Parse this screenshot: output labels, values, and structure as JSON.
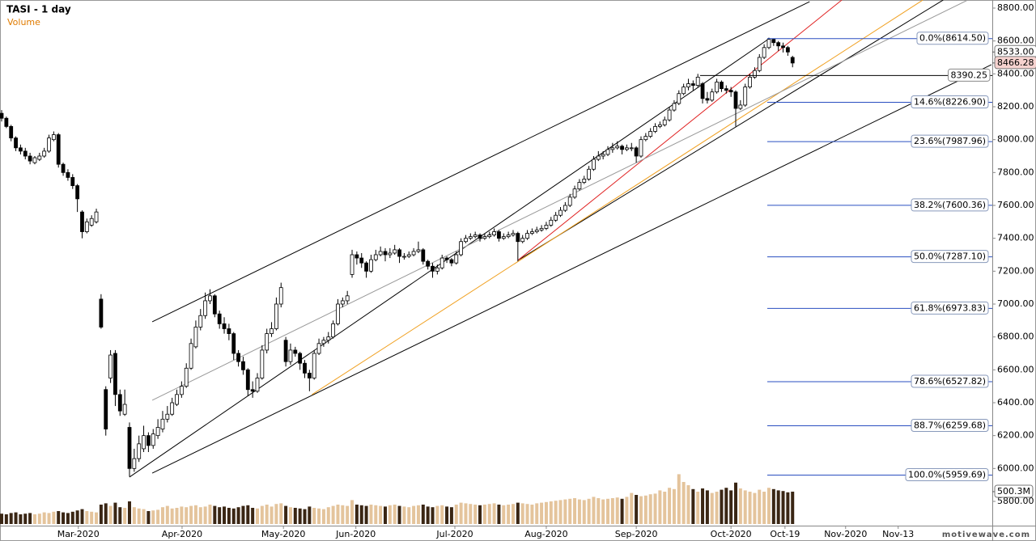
{
  "chart_data": {
    "type": "candlestick",
    "title": "TASI - 1 day",
    "volume_label": "Volume",
    "watermark": "motivewave.com",
    "up_color": "#ffffff",
    "down_color": "#000000",
    "volume_up_color": "#e4c49c",
    "volume_down_color": "#3a2614",
    "ylim": [
      5800,
      8800
    ],
    "yticks": [
      {
        "value": 5800,
        "label": "5800.00"
      },
      {
        "value": 6000,
        "label": "6000.00"
      },
      {
        "value": 6200,
        "label": "6200.00"
      },
      {
        "value": 6400,
        "label": "6400.00"
      },
      {
        "value": 6600,
        "label": "6600.00"
      },
      {
        "value": 6800,
        "label": "6800.00"
      },
      {
        "value": 7000,
        "label": "7000.00"
      },
      {
        "value": 7200,
        "label": "7200.00"
      },
      {
        "value": 7400,
        "label": "7400.00"
      },
      {
        "value": 7600,
        "label": "7600.00"
      },
      {
        "value": 7800,
        "label": "7800.00"
      },
      {
        "value": 8000,
        "label": "8000.00"
      },
      {
        "value": 8200,
        "label": "8200.00"
      },
      {
        "value": 8400,
        "label": "8400.00"
      },
      {
        "value": 8600,
        "label": "8600.00"
      },
      {
        "value": 8800,
        "label": "8800.00"
      }
    ],
    "xlim": [
      0,
      209
    ],
    "xticks": [
      {
        "value": 16.2,
        "label": "Mar-2020"
      },
      {
        "value": 38.1,
        "label": "Apr-2020"
      },
      {
        "value": 59.5,
        "label": "May-2020"
      },
      {
        "value": 74.8,
        "label": "Jun-2020"
      },
      {
        "value": 95.7,
        "label": "Jul-2020"
      },
      {
        "value": 115.0,
        "label": "Aug-2020"
      },
      {
        "value": 134.0,
        "label": "Sep-2020"
      },
      {
        "value": 154.0,
        "label": "Oct-2020"
      },
      {
        "value": 165.4,
        "label": "Oct-19"
      },
      {
        "value": 178.2,
        "label": "Nov-2020"
      },
      {
        "value": 189.3,
        "label": "Nov-13"
      }
    ],
    "vlim": [
      0,
      800
    ],
    "volume_tick": {
      "value": 500.3,
      "label": "500.3M"
    },
    "price_labels": [
      {
        "value": 8533.0,
        "label": "8533.00",
        "color": "#ffffff"
      },
      {
        "value": 8466.28,
        "label": "8466.28",
        "color": "#f6d2cf"
      }
    ],
    "horizontal_level": {
      "value": 8390.25,
      "label": "8390.25"
    },
    "fib_levels": [
      {
        "value": 8614.5,
        "label": "0.0%(8614.50)"
      },
      {
        "value": 8226.9,
        "label": "14.6%(8226.90)"
      },
      {
        "value": 7987.96,
        "label": "23.6%(7987.96)"
      },
      {
        "value": 7600.36,
        "label": "38.2%(7600.36)"
      },
      {
        "value": 7287.1,
        "label": "50.0%(7287.10)"
      },
      {
        "value": 6973.83,
        "label": "61.8%(6973.83)"
      },
      {
        "value": 6527.82,
        "label": "78.6%(6527.82)"
      },
      {
        "value": 6259.68,
        "label": "88.7%(6259.68)"
      },
      {
        "value": 5959.69,
        "label": "100.0%(5959.69)"
      }
    ],
    "fib_color": "#2a4fc0",
    "trendlines": [
      {
        "color": "#000000",
        "points": [
          [
            31.8,
            6892
          ],
          [
            170.6,
            8839
          ]
        ]
      },
      {
        "color": "#000000",
        "points": [
          [
            31.8,
            5972
          ],
          [
            209,
            8456
          ]
        ]
      },
      {
        "color": "#000000",
        "points": [
          [
            27,
            5948
          ],
          [
            162,
            8613
          ]
        ]
      },
      {
        "color": "#000000",
        "points": [
          [
            109,
            7266
          ],
          [
            198.8,
            8849
          ]
        ]
      },
      {
        "color": "#e02020",
        "points": [
          [
            109,
            7266
          ],
          [
            177.4,
            8849
          ]
        ]
      },
      {
        "color": "#f0a020",
        "points": [
          [
            65.5,
            6449
          ],
          [
            194.5,
            8849
          ]
        ]
      },
      {
        "color": "#999999",
        "points": [
          [
            31.8,
            6415
          ],
          [
            204,
            8849
          ]
        ]
      }
    ],
    "ohlc": [
      [
        8160,
        8180,
        8110,
        8130
      ],
      [
        8130,
        8140,
        8070,
        8080
      ],
      [
        8080,
        8090,
        7990,
        8010
      ],
      [
        8010,
        8020,
        7930,
        7950
      ],
      [
        7950,
        7970,
        7910,
        7930
      ],
      [
        7930,
        7950,
        7880,
        7900
      ],
      [
        7900,
        7920,
        7850,
        7870
      ],
      [
        7860,
        7900,
        7850,
        7890
      ],
      [
        7880,
        7920,
        7870,
        7900
      ],
      [
        7900,
        7950,
        7890,
        7930
      ],
      [
        7930,
        8030,
        7920,
        8010
      ],
      [
        8000,
        8050,
        7990,
        8030
      ],
      [
        8030,
        8040,
        7830,
        7850
      ],
      [
        7850,
        7860,
        7780,
        7800
      ],
      [
        7800,
        7820,
        7750,
        7770
      ],
      [
        7770,
        7790,
        7700,
        7720
      ],
      [
        7720,
        7730,
        7560,
        7640
      ],
      [
        7560,
        7570,
        7400,
        7440
      ],
      [
        7440,
        7520,
        7430,
        7500
      ],
      [
        7480,
        7540,
        7470,
        7520
      ],
      [
        7500,
        7580,
        7490,
        7560
      ],
      [
        7030,
        7060,
        6850,
        6860
      ],
      [
        6480,
        6500,
        6200,
        6240
      ],
      [
        6550,
        6720,
        6520,
        6690
      ],
      [
        6700,
        6720,
        6380,
        6450
      ],
      [
        6450,
        6480,
        6320,
        6350
      ],
      [
        6330,
        6480,
        6320,
        6390
      ],
      [
        6250,
        6280,
        5950,
        6000
      ],
      [
        6000,
        6120,
        5980,
        6060
      ],
      [
        6060,
        6200,
        6040,
        6150
      ],
      [
        6120,
        6260,
        6100,
        6200
      ],
      [
        6200,
        6220,
        6100,
        6140
      ],
      [
        6140,
        6240,
        6120,
        6210
      ],
      [
        6200,
        6300,
        6180,
        6250
      ],
      [
        6240,
        6350,
        6220,
        6300
      ],
      [
        6300,
        6380,
        6280,
        6330
      ],
      [
        6330,
        6430,
        6320,
        6400
      ],
      [
        6390,
        6480,
        6380,
        6450
      ],
      [
        6450,
        6530,
        6430,
        6500
      ],
      [
        6500,
        6640,
        6490,
        6610
      ],
      [
        6610,
        6790,
        6600,
        6760
      ],
      [
        6740,
        6900,
        6730,
        6860
      ],
      [
        6860,
        6970,
        6840,
        6930
      ],
      [
        6930,
        7070,
        6910,
        7020
      ],
      [
        7020,
        7090,
        7000,
        7050
      ],
      [
        7050,
        7060,
        6920,
        6940
      ],
      [
        6940,
        6960,
        6850,
        6880
      ],
      [
        6880,
        6920,
        6820,
        6850
      ],
      [
        6850,
        6880,
        6780,
        6820
      ],
      [
        6820,
        6830,
        6660,
        6700
      ],
      [
        6700,
        6720,
        6620,
        6650
      ],
      [
        6650,
        6680,
        6570,
        6600
      ],
      [
        6600,
        6610,
        6440,
        6480
      ],
      [
        6480,
        6530,
        6430,
        6470
      ],
      [
        6470,
        6580,
        6460,
        6550
      ],
      [
        6550,
        6750,
        6540,
        6720
      ],
      [
        6720,
        6850,
        6700,
        6820
      ],
      [
        6820,
        6890,
        6800,
        6850
      ],
      [
        6850,
        7040,
        6840,
        7000
      ],
      [
        7000,
        7130,
        6980,
        7100
      ],
      [
        6780,
        6800,
        6620,
        6650
      ],
      [
        6650,
        6760,
        6630,
        6720
      ],
      [
        6720,
        6740,
        6680,
        6700
      ],
      [
        6700,
        6710,
        6600,
        6640
      ],
      [
        6640,
        6660,
        6550,
        6580
      ],
      [
        6580,
        6600,
        6470,
        6550
      ],
      [
        6550,
        6720,
        6540,
        6700
      ],
      [
        6700,
        6790,
        6690,
        6760
      ],
      [
        6760,
        6800,
        6740,
        6780
      ],
      [
        6780,
        6830,
        6760,
        6800
      ],
      [
        6800,
        6900,
        6790,
        6880
      ],
      [
        6880,
        7030,
        6870,
        7000
      ],
      [
        7000,
        7040,
        6980,
        7020
      ],
      [
        7020,
        7080,
        7000,
        7050
      ],
      [
        7180,
        7330,
        7160,
        7300
      ],
      [
        7300,
        7320,
        7240,
        7280
      ],
      [
        7280,
        7310,
        7220,
        7250
      ],
      [
        7250,
        7260,
        7160,
        7200
      ],
      [
        7200,
        7300,
        7190,
        7270
      ],
      [
        7270,
        7330,
        7260,
        7300
      ],
      [
        7300,
        7350,
        7290,
        7320
      ],
      [
        7320,
        7340,
        7260,
        7300
      ],
      [
        7300,
        7340,
        7280,
        7310
      ],
      [
        7310,
        7360,
        7300,
        7330
      ],
      [
        7330,
        7340,
        7250,
        7290
      ],
      [
        7290,
        7310,
        7270,
        7290
      ],
      [
        7290,
        7320,
        7280,
        7300
      ],
      [
        7300,
        7340,
        7290,
        7320
      ],
      [
        7320,
        7380,
        7310,
        7330
      ],
      [
        7330,
        7340,
        7240,
        7260
      ],
      [
        7260,
        7270,
        7210,
        7230
      ],
      [
        7230,
        7250,
        7160,
        7200
      ],
      [
        7200,
        7240,
        7180,
        7220
      ],
      [
        7220,
        7300,
        7210,
        7280
      ],
      [
        7280,
        7290,
        7250,
        7270
      ],
      [
        7270,
        7280,
        7230,
        7250
      ],
      [
        7250,
        7320,
        7240,
        7300
      ],
      [
        7300,
        7400,
        7290,
        7380
      ],
      [
        7380,
        7420,
        7370,
        7400
      ],
      [
        7400,
        7430,
        7390,
        7410
      ],
      [
        7410,
        7440,
        7400,
        7420
      ],
      [
        7420,
        7430,
        7380,
        7400
      ],
      [
        7400,
        7430,
        7390,
        7410
      ],
      [
        7410,
        7440,
        7400,
        7420
      ],
      [
        7420,
        7460,
        7410,
        7440
      ],
      [
        7440,
        7450,
        7380,
        7400
      ],
      [
        7400,
        7430,
        7390,
        7410
      ],
      [
        7410,
        7440,
        7400,
        7420
      ],
      [
        7420,
        7450,
        7410,
        7430
      ],
      [
        7430,
        7440,
        7260,
        7380
      ],
      [
        7380,
        7420,
        7370,
        7400
      ],
      [
        7400,
        7450,
        7390,
        7430
      ],
      [
        7430,
        7460,
        7420,
        7440
      ],
      [
        7440,
        7470,
        7430,
        7450
      ],
      [
        7450,
        7480,
        7440,
        7460
      ],
      [
        7460,
        7500,
        7450,
        7480
      ],
      [
        7480,
        7530,
        7470,
        7510
      ],
      [
        7510,
        7560,
        7500,
        7540
      ],
      [
        7540,
        7590,
        7530,
        7570
      ],
      [
        7570,
        7620,
        7560,
        7600
      ],
      [
        7600,
        7670,
        7590,
        7650
      ],
      [
        7650,
        7720,
        7640,
        7700
      ],
      [
        7700,
        7760,
        7690,
        7740
      ],
      [
        7740,
        7780,
        7730,
        7760
      ],
      [
        7760,
        7840,
        7750,
        7820
      ],
      [
        7820,
        7900,
        7810,
        7880
      ],
      [
        7880,
        7930,
        7870,
        7900
      ],
      [
        7900,
        7930,
        7880,
        7910
      ],
      [
        7910,
        7960,
        7900,
        7940
      ],
      [
        7940,
        7980,
        7920,
        7950
      ],
      [
        7950,
        7990,
        7940,
        7960
      ],
      [
        7960,
        7970,
        7910,
        7940
      ],
      [
        7940,
        7970,
        7930,
        7950
      ],
      [
        7950,
        7980,
        7930,
        7950
      ],
      [
        7950,
        7960,
        7860,
        7900
      ],
      [
        7900,
        8020,
        7890,
        8000
      ],
      [
        8000,
        8040,
        7990,
        8020
      ],
      [
        8020,
        8070,
        8010,
        8050
      ],
      [
        8050,
        8100,
        8040,
        8080
      ],
      [
        8080,
        8110,
        8070,
        8090
      ],
      [
        8090,
        8140,
        8080,
        8120
      ],
      [
        8120,
        8200,
        8110,
        8180
      ],
      [
        8180,
        8240,
        8170,
        8220
      ],
      [
        8220,
        8300,
        8210,
        8280
      ],
      [
        8280,
        8340,
        8270,
        8320
      ],
      [
        8320,
        8370,
        8300,
        8340
      ],
      [
        8340,
        8360,
        8300,
        8330
      ],
      [
        8330,
        8400,
        8320,
        8380
      ],
      [
        8340,
        8350,
        8220,
        8250
      ],
      [
        8250,
        8290,
        8220,
        8240
      ],
      [
        8240,
        8310,
        8230,
        8290
      ],
      [
        8290,
        8370,
        8280,
        8350
      ],
      [
        8350,
        8360,
        8290,
        8310
      ],
      [
        8310,
        8330,
        8280,
        8300
      ],
      [
        8300,
        8320,
        8260,
        8290
      ],
      [
        8290,
        8300,
        8080,
        8190
      ],
      [
        8190,
        8240,
        8180,
        8210
      ],
      [
        8210,
        8340,
        8200,
        8320
      ],
      [
        8320,
        8400,
        8310,
        8380
      ],
      [
        8380,
        8440,
        8370,
        8420
      ],
      [
        8420,
        8520,
        8410,
        8500
      ],
      [
        8500,
        8580,
        8490,
        8560
      ],
      [
        8560,
        8620,
        8550,
        8610
      ],
      [
        8610,
        8615,
        8570,
        8590
      ],
      [
        8590,
        8600,
        8540,
        8570
      ],
      [
        8570,
        8590,
        8530,
        8560
      ],
      [
        8560,
        8570,
        8510,
        8533
      ],
      [
        8500,
        8510,
        8440,
        8466
      ]
    ],
    "volume": [
      160,
      150,
      170,
      180,
      150,
      160,
      170,
      150,
      160,
      180,
      170,
      190,
      200,
      180,
      170,
      190,
      210,
      230,
      200,
      190,
      180,
      300,
      320,
      280,
      330,
      260,
      250,
      350,
      260,
      240,
      230,
      200,
      210,
      220,
      260,
      280,
      240,
      250,
      270,
      260,
      280,
      290,
      260,
      270,
      300,
      280,
      260,
      270,
      250,
      240,
      260,
      280,
      290,
      250,
      240,
      280,
      300,
      270,
      310,
      320,
      280,
      260,
      250,
      240,
      230,
      270,
      250,
      240,
      230,
      260,
      280,
      300,
      290,
      280,
      370,
      300,
      290,
      280,
      300,
      290,
      280,
      270,
      290,
      300,
      280,
      270,
      260,
      280,
      290,
      300,
      270,
      260,
      280,
      290,
      270,
      260,
      300,
      330,
      320,
      310,
      300,
      290,
      300,
      310,
      320,
      300,
      290,
      300,
      310,
      330,
      320,
      310,
      300,
      320,
      330,
      340,
      350,
      360,
      370,
      380,
      390,
      400,
      380,
      370,
      390,
      420,
      400,
      380,
      390,
      400,
      410,
      390,
      420,
      480,
      450,
      430,
      440,
      460,
      470,
      520,
      500,
      560,
      540,
      770,
      650,
      600,
      540,
      500,
      550,
      520,
      480,
      500,
      530,
      560,
      520,
      640,
      550,
      520,
      500,
      480,
      530,
      500,
      560,
      540,
      520,
      510,
      490,
      500.3
    ]
  }
}
